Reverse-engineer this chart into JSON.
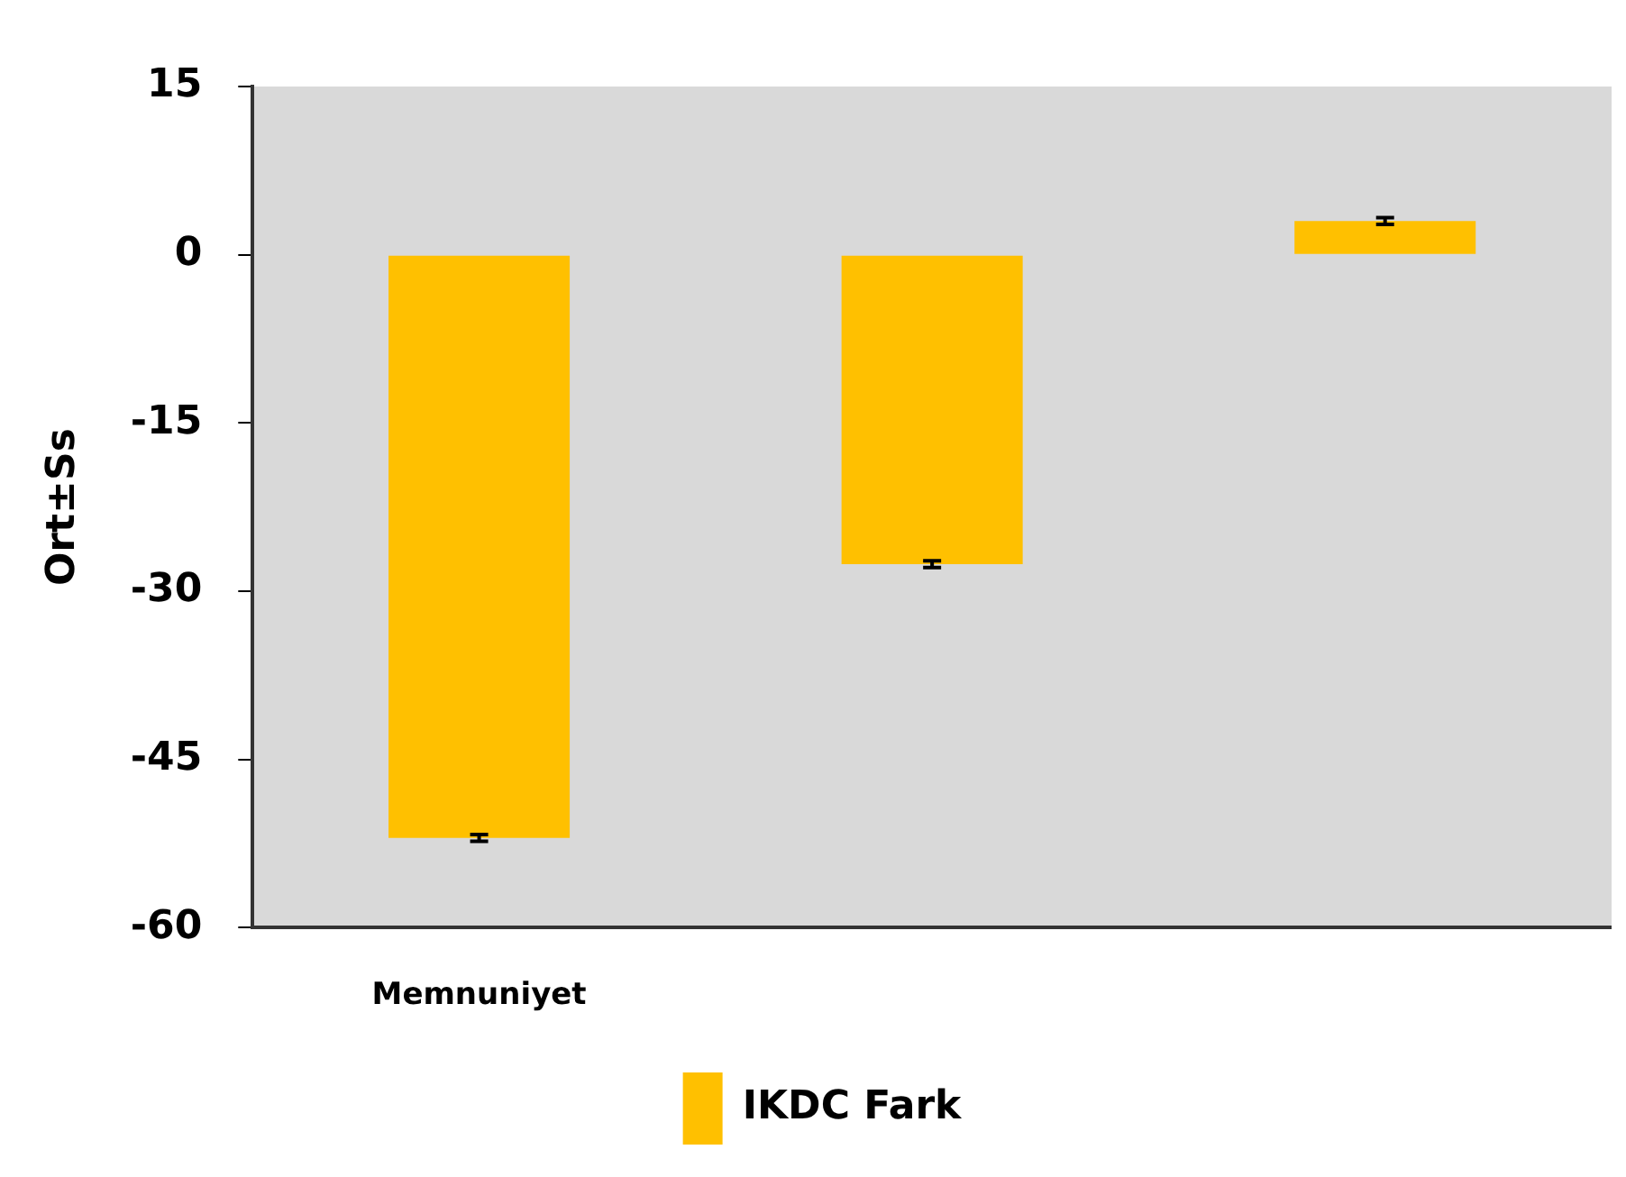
{
  "chart_data": {
    "type": "bar",
    "ylabel": "Ort±Ss",
    "categories": [
      "Memnuniyet",
      null,
      null
    ],
    "series": [
      {
        "name": "IKDC Fark",
        "color": "#ffc000",
        "values": [
          -52,
          -27.6,
          3
        ],
        "errors": [
          0.3,
          0.3,
          0.3
        ]
      }
    ],
    "ylim": [
      -60,
      15
    ],
    "yticks": [
      -60,
      -45,
      -30,
      -15,
      0,
      15
    ],
    "grid": false,
    "legend": "bottom"
  }
}
